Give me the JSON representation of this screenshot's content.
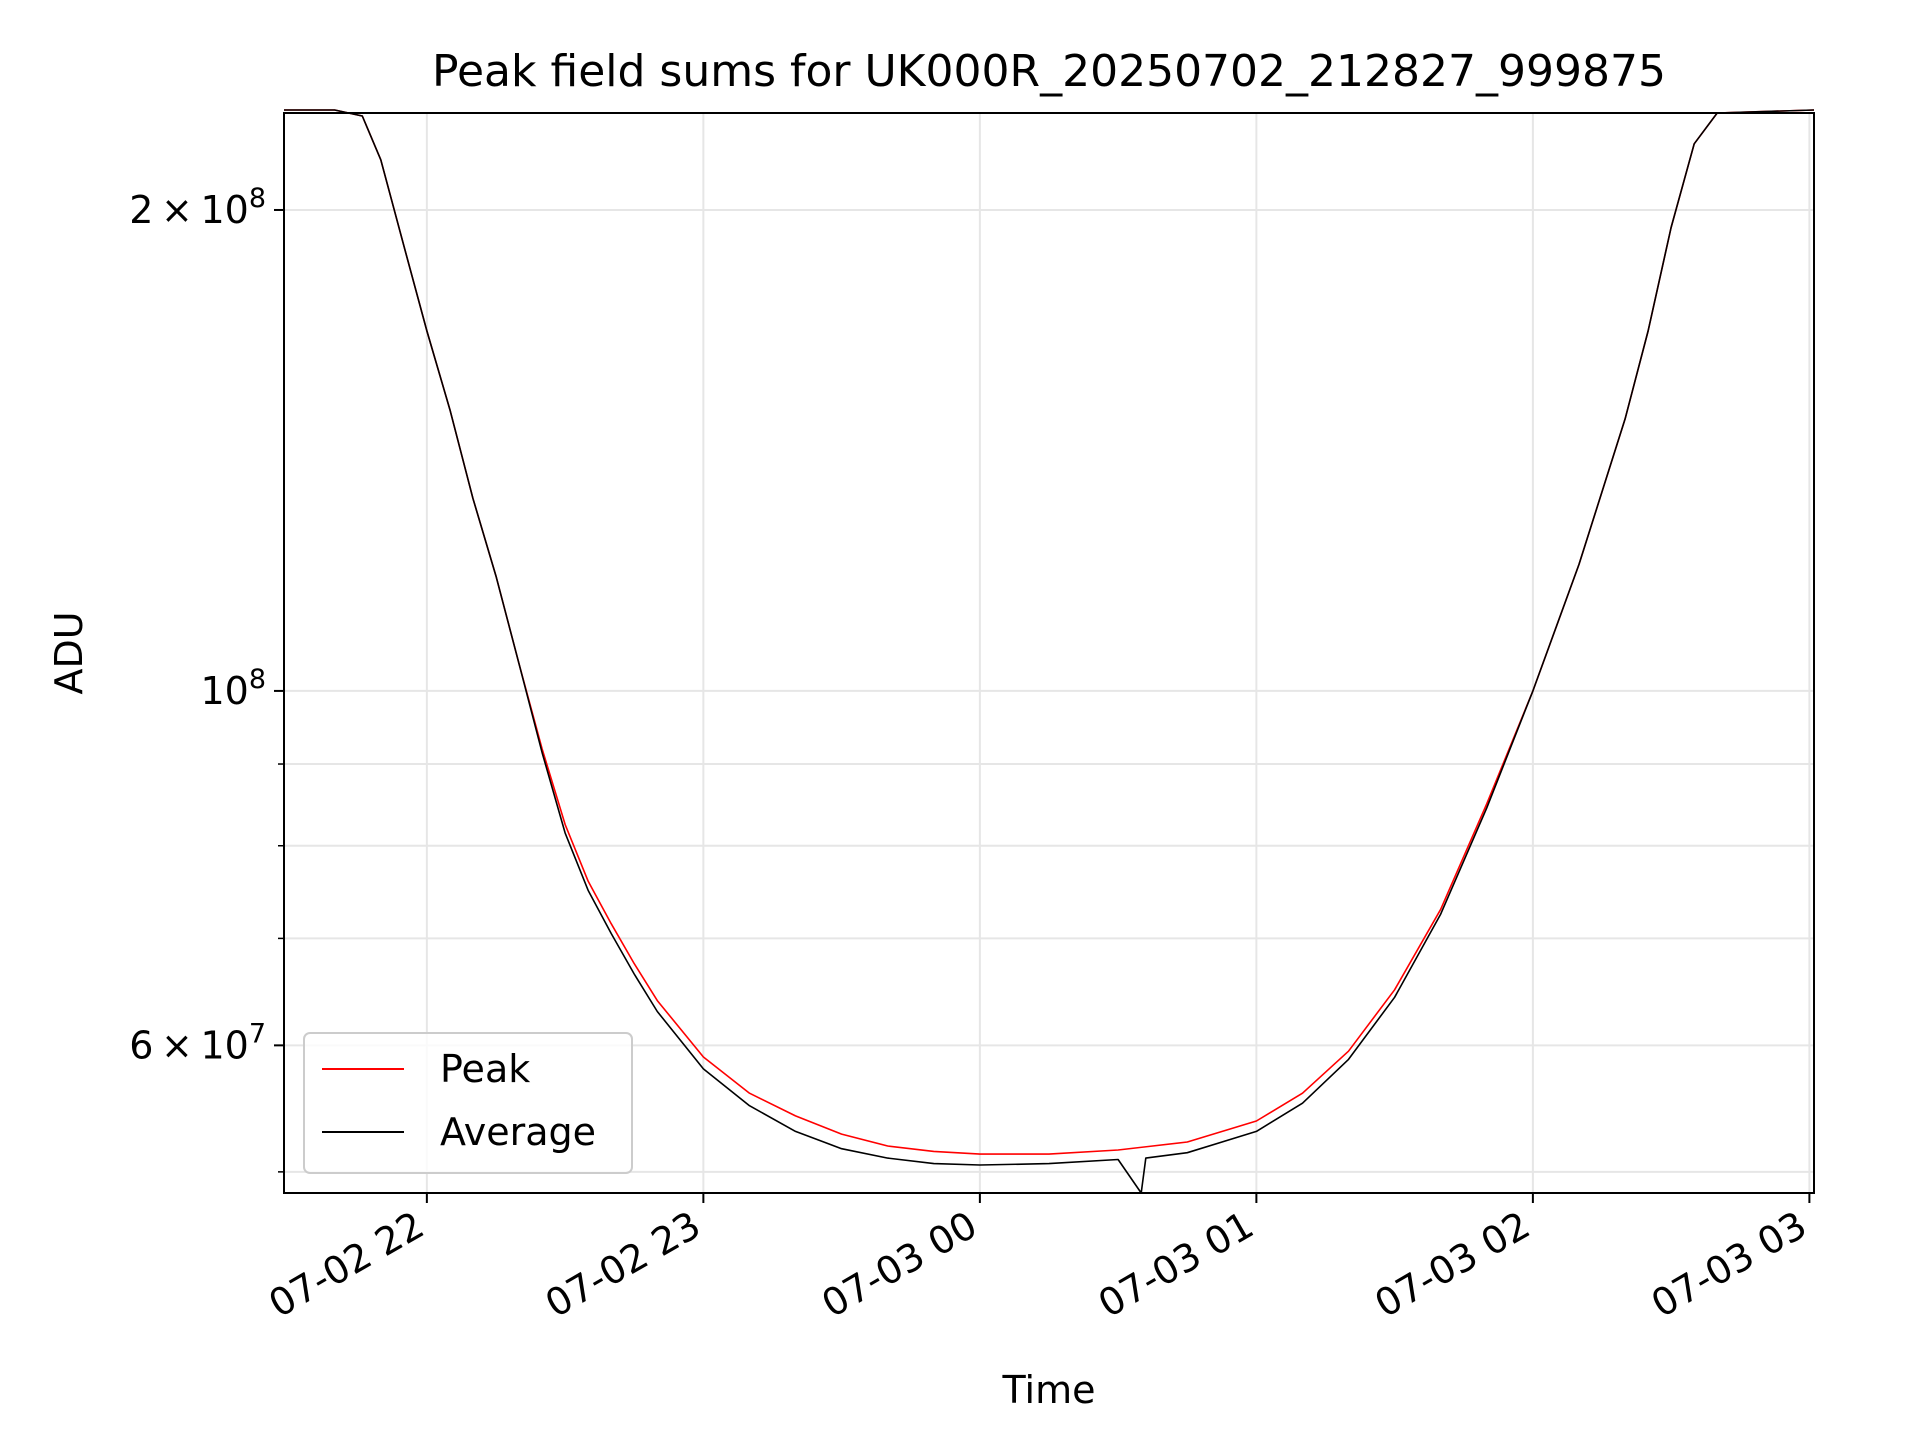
{
  "chart_data": {
    "type": "line",
    "title": "Peak field sums for UK000R_20250702_212827_999875",
    "xlabel": "Time",
    "ylabel": "ADU",
    "y_scale": "log",
    "grid": true,
    "legend_position": "lower-left",
    "xlim": [
      "2025-07-02 21:29",
      "2025-07-03 03:01"
    ],
    "ylim": [
      48500000,
      230000000
    ],
    "x_ticks": [
      {
        "value": "2025-07-02 22:00",
        "label": "07-02 22"
      },
      {
        "value": "2025-07-02 23:00",
        "label": "07-02 23"
      },
      {
        "value": "2025-07-03 00:00",
        "label": "07-03 00"
      },
      {
        "value": "2025-07-03 01:00",
        "label": "07-03 01"
      },
      {
        "value": "2025-07-03 02:00",
        "label": "07-03 02"
      },
      {
        "value": "2025-07-03 03:00",
        "label": "07-03 03"
      }
    ],
    "y_ticks": [
      {
        "value": 60000000,
        "mant": "6",
        "exp": "7",
        "show_mant": true
      },
      {
        "value": 100000000,
        "mant": "",
        "exp": "8",
        "show_mant": false
      },
      {
        "value": 200000000,
        "mant": "2",
        "exp": "8",
        "show_mant": true
      }
    ],
    "y_minor_ticks": [
      50000000,
      70000000,
      80000000,
      90000000
    ],
    "series": [
      {
        "name": "Peak",
        "color": "#ff0000",
        "points": [
          [
            "2025-07-02 21:29",
            231000000
          ],
          [
            "2025-07-02 21:40",
            231000000
          ],
          [
            "2025-07-02 21:46",
            229000000
          ],
          [
            "2025-07-02 21:50",
            215000000
          ],
          [
            "2025-07-02 21:55",
            190000000
          ],
          [
            "2025-07-02 22:00",
            168000000
          ],
          [
            "2025-07-02 22:05",
            150000000
          ],
          [
            "2025-07-02 22:10",
            132000000
          ],
          [
            "2025-07-02 22:15",
            118000000
          ],
          [
            "2025-07-02 22:20",
            104000000
          ],
          [
            "2025-07-02 22:25",
            92000000
          ],
          [
            "2025-07-02 22:30",
            82500000
          ],
          [
            "2025-07-02 22:35",
            76000000
          ],
          [
            "2025-07-02 22:40",
            71500000
          ],
          [
            "2025-07-02 22:45",
            67500000
          ],
          [
            "2025-07-02 22:50",
            64000000
          ],
          [
            "2025-07-02 23:00",
            59000000
          ],
          [
            "2025-07-02 23:10",
            56000000
          ],
          [
            "2025-07-02 23:20",
            54200000
          ],
          [
            "2025-07-02 23:30",
            52800000
          ],
          [
            "2025-07-02 23:40",
            51900000
          ],
          [
            "2025-07-02 23:50",
            51500000
          ],
          [
            "2025-07-03 00:00",
            51300000
          ],
          [
            "2025-07-03 00:15",
            51300000
          ],
          [
            "2025-07-03 00:30",
            51600000
          ],
          [
            "2025-07-03 00:45",
            52200000
          ],
          [
            "2025-07-03 01:00",
            53800000
          ],
          [
            "2025-07-03 01:10",
            56000000
          ],
          [
            "2025-07-03 01:20",
            59500000
          ],
          [
            "2025-07-03 01:30",
            65000000
          ],
          [
            "2025-07-03 01:40",
            73000000
          ],
          [
            "2025-07-03 01:50",
            85000000
          ],
          [
            "2025-07-03 02:00",
            100000000
          ],
          [
            "2025-07-03 02:10",
            120000000
          ],
          [
            "2025-07-03 02:20",
            148000000
          ],
          [
            "2025-07-03 02:25",
            168000000
          ],
          [
            "2025-07-03 02:30",
            195000000
          ],
          [
            "2025-07-03 02:35",
            220000000
          ],
          [
            "2025-07-03 02:40",
            230000000
          ],
          [
            "2025-07-03 03:01",
            231000000
          ]
        ]
      },
      {
        "name": "Average",
        "color": "#000000",
        "points": [
          [
            "2025-07-02 21:29",
            231000000
          ],
          [
            "2025-07-02 21:40",
            231000000
          ],
          [
            "2025-07-02 21:46",
            229000000
          ],
          [
            "2025-07-02 21:50",
            215000000
          ],
          [
            "2025-07-02 21:55",
            190000000
          ],
          [
            "2025-07-02 22:00",
            168000000
          ],
          [
            "2025-07-02 22:05",
            150000000
          ],
          [
            "2025-07-02 22:10",
            132000000
          ],
          [
            "2025-07-02 22:15",
            118000000
          ],
          [
            "2025-07-02 22:20",
            104000000
          ],
          [
            "2025-07-02 22:25",
            91500000
          ],
          [
            "2025-07-02 22:30",
            81500000
          ],
          [
            "2025-07-02 22:35",
            75000000
          ],
          [
            "2025-07-02 22:40",
            70500000
          ],
          [
            "2025-07-02 22:45",
            66500000
          ],
          [
            "2025-07-02 22:50",
            63000000
          ],
          [
            "2025-07-02 23:00",
            58000000
          ],
          [
            "2025-07-02 23:10",
            55000000
          ],
          [
            "2025-07-02 23:20",
            53000000
          ],
          [
            "2025-07-02 23:30",
            51700000
          ],
          [
            "2025-07-02 23:40",
            51000000
          ],
          [
            "2025-07-02 23:50",
            50600000
          ],
          [
            "2025-07-03 00:00",
            50500000
          ],
          [
            "2025-07-03 00:15",
            50600000
          ],
          [
            "2025-07-03 00:30",
            50900000
          ],
          [
            "2025-07-03 00:35",
            48500000
          ],
          [
            "2025-07-03 00:36",
            51000000
          ],
          [
            "2025-07-03 00:45",
            51400000
          ],
          [
            "2025-07-03 01:00",
            53000000
          ],
          [
            "2025-07-03 01:10",
            55200000
          ],
          [
            "2025-07-03 01:20",
            58800000
          ],
          [
            "2025-07-03 01:30",
            64300000
          ],
          [
            "2025-07-03 01:40",
            72500000
          ],
          [
            "2025-07-03 01:50",
            84500000
          ],
          [
            "2025-07-03 02:00",
            100000000
          ],
          [
            "2025-07-03 02:10",
            120000000
          ],
          [
            "2025-07-03 02:20",
            148000000
          ],
          [
            "2025-07-03 02:25",
            168000000
          ],
          [
            "2025-07-03 02:30",
            195000000
          ],
          [
            "2025-07-03 02:35",
            220000000
          ],
          [
            "2025-07-03 02:40",
            230000000
          ],
          [
            "2025-07-03 03:01",
            231000000
          ]
        ]
      }
    ]
  }
}
